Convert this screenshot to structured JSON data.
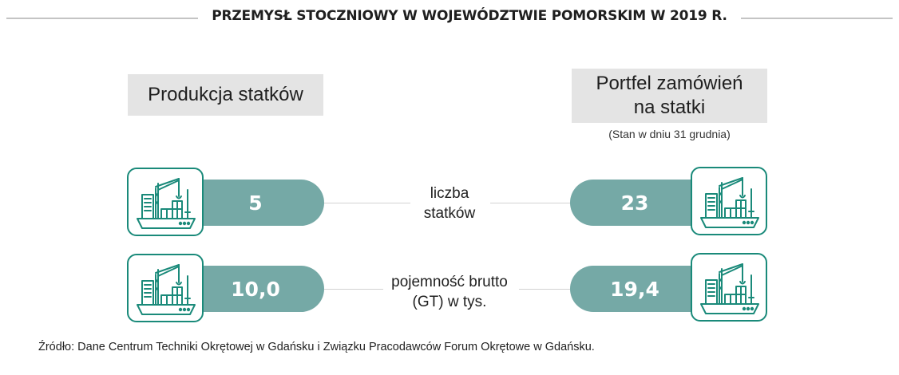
{
  "title": "PRZEMYSŁ STOCZNIOWY W WOJEWÓDZTWIE POMORSKIM W 2019 R.",
  "columns": {
    "left": {
      "label": "Produkcja statków"
    },
    "right": {
      "label_line1": "Portfel zamówień",
      "label_line2": "na statki",
      "note": "(Stan w dniu 31 grudnia)"
    }
  },
  "colors": {
    "accent": "#75a9a6",
    "icon_stroke": "#1a8a7a",
    "box": "#e4e4e4"
  },
  "icons": [
    "ship-with-crane-icon"
  ],
  "chart_data": {
    "type": "table",
    "title": "PRZEMYSŁ STOCZNIOWY W WOJEWÓDZTWIE POMORSKIM W 2019 R.",
    "columns": [
      "Produkcja statków",
      "Portfel zamówień na statki"
    ],
    "rows": [
      {
        "metric_line1": "liczba",
        "metric_line2": "statków",
        "production": "5",
        "orders": "23"
      },
      {
        "metric_line1": "pojemność brutto",
        "metric_line2": "(GT) w tys.",
        "production": "10,0",
        "orders": "19,4"
      }
    ]
  },
  "source": "Źródło: Dane Centrum Techniki Okrętowej w Gdańsku i Związku Pracodawców Forum Okrętowe w Gdańsku."
}
